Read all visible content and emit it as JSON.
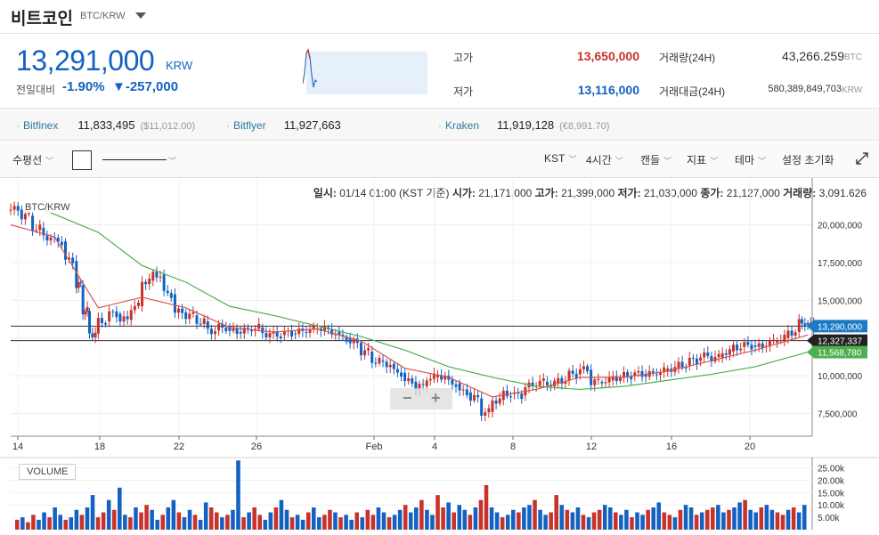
{
  "header": {
    "coin_name": "비트코인",
    "pair": "BTC/KRW"
  },
  "summary": {
    "price": "13,291,000",
    "unit": "KRW",
    "change_label": "전일대비",
    "change_rate": "-1.90%",
    "change_amount": "▼-257,000",
    "high_label": "고가",
    "high_value": "13,650,000",
    "low_label": "저가",
    "low_value": "13,116,000",
    "volume_label": "거래량(24H)",
    "volume_value": "43,266.259",
    "volume_unit": "BTC",
    "amount_label": "거래대금(24H)",
    "amount_value": "580,389,849,703",
    "amount_unit": "KRW"
  },
  "exchanges": [
    {
      "name": "Bitfinex",
      "price": "11,833,495",
      "sub": "($11,012.00)"
    },
    {
      "name": "Bitflyer",
      "price": "11,927,663",
      "sub": ""
    },
    {
      "name": "Kraken",
      "price": "11,919,128",
      "sub": "(€8,991.70)"
    }
  ],
  "toolbar": {
    "hline": "수평선",
    "timezone": "KST",
    "interval": "4시간",
    "candle": "캔들",
    "indicator": "지표",
    "theme": "테마",
    "reset": "설정 초기화"
  },
  "ohlc": {
    "date_label": "일시:",
    "date_value": "01/14 01:00 (KST 기준)",
    "open_label": "시가:",
    "open_value": "21,171,000",
    "high_label": "고가:",
    "high_value": "21,399,000",
    "low_label": "저가:",
    "low_value": "21,030,000",
    "close_label": "종가:",
    "close_value": "21,127,000",
    "vol_label": "거래량:",
    "vol_value": "3,091.626"
  },
  "colors": {
    "up": "#c8322a",
    "down": "#1361c2",
    "ma_short": "#d9534f",
    "ma_long": "#4caf50",
    "price_label_current": "#1a7ac4",
    "price_label_hline": "#222222",
    "price_label_ma": "#4caf50"
  },
  "chart_data": {
    "type": "candlestick",
    "title": "BTC/KRW",
    "xlabel": "",
    "ylabel": "",
    "x_ticks": [
      "14",
      "18",
      "22",
      "26",
      "Feb",
      "4",
      "8",
      "12",
      "16",
      "20"
    ],
    "y_ticks": [
      "7,500,000",
      "10,000,000",
      "12,500,000",
      "15,000,000",
      "17,500,000",
      "20,000,000"
    ],
    "ylim": [
      6000000,
      21800000
    ],
    "price_labels": {
      "current": "13,290,000",
      "hline": "12,327,337",
      "ma_long_last": "11,568,780"
    },
    "hlines": [
      13290000,
      12327337
    ],
    "series_close_by_day": [
      {
        "day": 0,
        "close": 21000000
      },
      {
        "day": 0.5,
        "close": 20600000
      },
      {
        "day": 1,
        "close": 19800000
      },
      {
        "day": 1.5,
        "close": 19200000
      },
      {
        "day": 2,
        "close": 18900000
      },
      {
        "day": 2.5,
        "close": 17600000
      },
      {
        "day": 3,
        "close": 16000000
      },
      {
        "day": 3.3,
        "close": 14300000
      },
      {
        "day": 3.6,
        "close": 12800000
      },
      {
        "day": 4,
        "close": 13600000
      },
      {
        "day": 4.5,
        "close": 14100000
      },
      {
        "day": 5,
        "close": 13700000
      },
      {
        "day": 5.5,
        "close": 14600000
      },
      {
        "day": 6,
        "close": 16300000
      },
      {
        "day": 6.5,
        "close": 16700000
      },
      {
        "day": 7,
        "close": 15400000
      },
      {
        "day": 7.5,
        "close": 14200000
      },
      {
        "day": 8,
        "close": 14000000
      },
      {
        "day": 8.5,
        "close": 13600000
      },
      {
        "day": 9,
        "close": 13000000
      },
      {
        "day": 9.5,
        "close": 13200000
      },
      {
        "day": 10,
        "close": 12900000
      },
      {
        "day": 10.5,
        "close": 13000000
      },
      {
        "day": 11,
        "close": 13200000
      },
      {
        "day": 11.5,
        "close": 12800000
      },
      {
        "day": 12,
        "close": 12700000
      },
      {
        "day": 12.5,
        "close": 12800000
      },
      {
        "day": 13,
        "close": 12900000
      },
      {
        "day": 13.5,
        "close": 13100000
      },
      {
        "day": 14,
        "close": 13200000
      },
      {
        "day": 14.5,
        "close": 12900000
      },
      {
        "day": 15,
        "close": 12500000
      },
      {
        "day": 15.5,
        "close": 12200000
      },
      {
        "day": 16,
        "close": 11600000
      },
      {
        "day": 16.5,
        "close": 11000000
      },
      {
        "day": 17,
        "close": 10800000
      },
      {
        "day": 17.5,
        "close": 10200000
      },
      {
        "day": 18,
        "close": 9600000
      },
      {
        "day": 18.5,
        "close": 9300000
      },
      {
        "day": 19,
        "close": 9900000
      },
      {
        "day": 19.5,
        "close": 10000000
      },
      {
        "day": 20,
        "close": 9500000
      },
      {
        "day": 20.5,
        "close": 8900000
      },
      {
        "day": 21,
        "close": 8500000
      },
      {
        "day": 21.5,
        "close": 7600000
      },
      {
        "day": 22,
        "close": 8400000
      },
      {
        "day": 22.5,
        "close": 8800000
      },
      {
        "day": 23,
        "close": 8700000
      },
      {
        "day": 23.5,
        "close": 9300000
      },
      {
        "day": 24,
        "close": 9600000
      },
      {
        "day": 24.5,
        "close": 9500000
      },
      {
        "day": 25,
        "close": 9700000
      },
      {
        "day": 25.5,
        "close": 10100000
      },
      {
        "day": 26,
        "close": 10400000
      },
      {
        "day": 26.5,
        "close": 9600000
      },
      {
        "day": 27,
        "close": 9700000
      },
      {
        "day": 27.5,
        "close": 9900000
      },
      {
        "day": 28,
        "close": 10000000
      },
      {
        "day": 28.5,
        "close": 10100000
      },
      {
        "day": 29,
        "close": 10100000
      },
      {
        "day": 29.5,
        "close": 10300000
      },
      {
        "day": 30,
        "close": 10500000
      },
      {
        "day": 30.5,
        "close": 10700000
      },
      {
        "day": 31,
        "close": 11000000
      },
      {
        "day": 31.5,
        "close": 11300000
      },
      {
        "day": 32,
        "close": 11200000
      },
      {
        "day": 32.5,
        "close": 11600000
      },
      {
        "day": 33,
        "close": 11900000
      },
      {
        "day": 33.5,
        "close": 12000000
      },
      {
        "day": 34,
        "close": 11900000
      },
      {
        "day": 34.5,
        "close": 12200000
      },
      {
        "day": 35,
        "close": 12500000
      },
      {
        "day": 35.5,
        "close": 12900000
      },
      {
        "day": 36,
        "close": 13500000
      },
      {
        "day": 36.4,
        "close": 13290000
      }
    ],
    "ma_short_by_day": [
      {
        "day": 0,
        "close": 20000000
      },
      {
        "day": 2,
        "close": 19200000
      },
      {
        "day": 4,
        "close": 14500000
      },
      {
        "day": 6,
        "close": 15200000
      },
      {
        "day": 8,
        "close": 14500000
      },
      {
        "day": 10,
        "close": 13200000
      },
      {
        "day": 12,
        "close": 12900000
      },
      {
        "day": 14,
        "close": 13100000
      },
      {
        "day": 16,
        "close": 12300000
      },
      {
        "day": 18,
        "close": 10500000
      },
      {
        "day": 20,
        "close": 9900000
      },
      {
        "day": 22,
        "close": 8600000
      },
      {
        "day": 24,
        "close": 9100000
      },
      {
        "day": 26,
        "close": 9900000
      },
      {
        "day": 28,
        "close": 9900000
      },
      {
        "day": 30,
        "close": 10300000
      },
      {
        "day": 32,
        "close": 11000000
      },
      {
        "day": 34,
        "close": 11700000
      },
      {
        "day": 36.4,
        "close": 12700000
      }
    ],
    "ma_long_by_day": [
      {
        "day": 1.5,
        "close": 21000000
      },
      {
        "day": 4,
        "close": 19500000
      },
      {
        "day": 6,
        "close": 17300000
      },
      {
        "day": 8,
        "close": 16200000
      },
      {
        "day": 10,
        "close": 14600000
      },
      {
        "day": 12,
        "close": 14000000
      },
      {
        "day": 14,
        "close": 13300000
      },
      {
        "day": 16,
        "close": 12600000
      },
      {
        "day": 18,
        "close": 11700000
      },
      {
        "day": 20,
        "close": 10600000
      },
      {
        "day": 22,
        "close": 9900000
      },
      {
        "day": 24,
        "close": 9300000
      },
      {
        "day": 26,
        "close": 9100000
      },
      {
        "day": 28,
        "close": 9300000
      },
      {
        "day": 30,
        "close": 9700000
      },
      {
        "day": 32,
        "close": 10100000
      },
      {
        "day": 34,
        "close": 10600000
      },
      {
        "day": 36.4,
        "close": 11568780
      }
    ],
    "volume": {
      "label": "VOLUME",
      "y_ticks": [
        "5.00k",
        "10.00k",
        "15.00k",
        "20.00k",
        "25.00k"
      ],
      "ylim": [
        0,
        27000
      ],
      "bars_k": [
        4,
        5,
        3,
        6,
        4,
        7,
        5,
        9,
        6,
        4,
        5,
        8,
        6,
        9,
        14,
        5,
        7,
        12,
        8,
        17,
        6,
        5,
        9,
        7,
        10,
        8,
        4,
        6,
        9,
        12,
        7,
        5,
        8,
        6,
        4,
        11,
        9,
        7,
        5,
        6,
        8,
        28,
        5,
        7,
        9,
        6,
        4,
        7,
        9,
        12,
        8,
        5,
        6,
        4,
        7,
        9,
        5,
        6,
        8,
        7,
        5,
        6,
        4,
        7,
        5,
        8,
        6,
        9,
        7,
        5,
        6,
        8,
        10,
        7,
        9,
        12,
        8,
        6,
        14,
        9,
        11,
        7,
        10,
        8,
        6,
        9,
        12,
        18,
        9,
        7,
        5,
        6,
        8,
        7,
        9,
        10,
        12,
        8,
        6,
        7,
        14,
        10,
        8,
        7,
        9,
        6,
        5,
        7,
        8,
        10,
        9,
        7,
        6,
        8,
        5,
        7,
        6,
        8,
        9,
        11,
        7,
        6,
        5,
        8,
        10,
        9,
        6,
        7,
        8,
        9,
        10,
        7,
        8,
        9,
        11,
        12,
        8,
        7,
        9,
        10,
        8,
        7,
        6,
        8,
        9,
        7,
        10
      ]
    }
  }
}
